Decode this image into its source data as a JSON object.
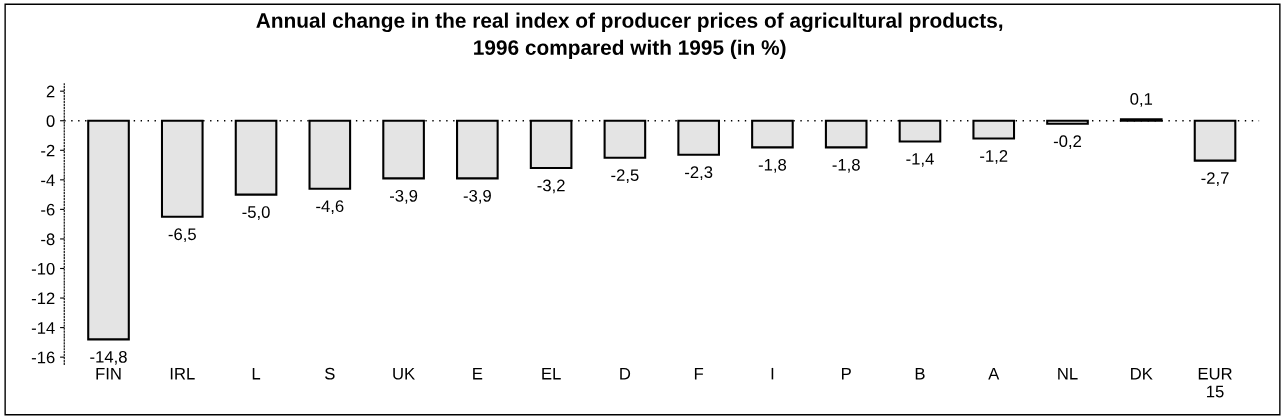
{
  "chart_data": {
    "type": "bar",
    "title": "Annual change in the real index of producer prices of agricultural products,\n1996 compared with 1995 (in %)",
    "categories": [
      "FIN",
      "IRL",
      "L",
      "S",
      "UK",
      "E",
      "EL",
      "D",
      "F",
      "I",
      "P",
      "B",
      "A",
      "NL",
      "DK",
      "EUR\n15"
    ],
    "values": [
      -14.8,
      -6.5,
      -5.0,
      -4.6,
      -3.9,
      -3.9,
      -3.2,
      -2.5,
      -2.3,
      -1.8,
      -1.8,
      -1.4,
      -1.2,
      -0.2,
      0.1,
      -2.7
    ],
    "value_labels": [
      "-14,8",
      "-6,5",
      "-5,0",
      "-4,6",
      "-3,9",
      "-3,9",
      "-3,2",
      "-2,5",
      "-2,3",
      "-1,8",
      "-1,8",
      "-1,4",
      "-1,2",
      "-0,2",
      "0,1",
      "-2,7"
    ],
    "color": "#e4e4e4",
    "ylim": [
      -16.5,
      2.5
    ],
    "yticks": [
      2,
      0,
      -2,
      -4,
      -6,
      -8,
      -10,
      -12,
      -14,
      -16
    ],
    "ref_lines": [
      {
        "axis": "y",
        "value": 0,
        "line_style": "dotted"
      }
    ]
  }
}
